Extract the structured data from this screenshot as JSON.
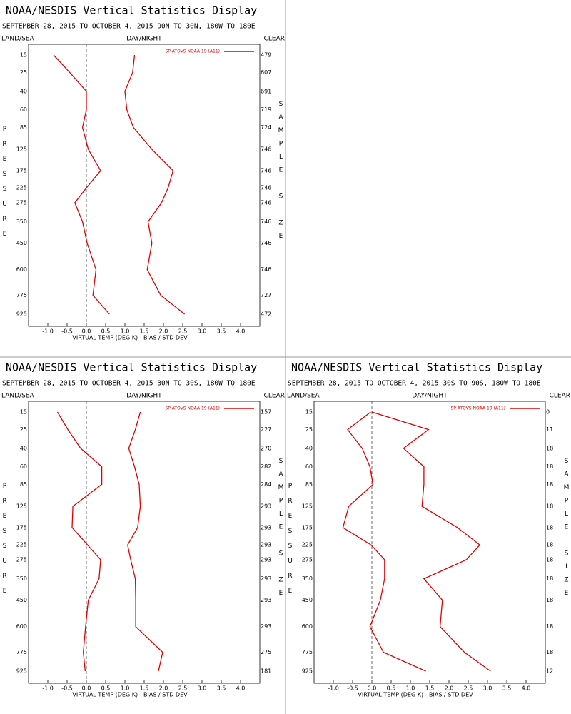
{
  "chart_data": [
    {
      "type": "line",
      "title": "NOAA/NESDIS Vertical Statistics Display",
      "subtitle": "SEPTEMBER 28, 2015 TO OCTOBER 4, 2015 90N TO 30N, 180W TO 180E",
      "left_header": "LAND/SEA",
      "center_header": "DAY/NIGHT",
      "right_header": "CLEAR",
      "ylabel": "PRESSURE",
      "y2label": "SAMPLE SIZE",
      "xlabel": "VIRTUAL TEMP (DEG K) - BIAS / STD DEV",
      "categories": [
        15,
        25,
        40,
        60,
        85,
        125,
        175,
        225,
        275,
        350,
        450,
        600,
        775,
        925
      ],
      "sample_sizes": [
        479,
        607,
        691,
        719,
        724,
        746,
        746,
        746,
        746,
        746,
        746,
        746,
        727,
        472
      ],
      "series": [
        {
          "name": "SP ATOVS NOAA-19 (A11)",
          "color": "#e00000",
          "bias": [
            -0.85,
            -0.43,
            0.0,
            0.0,
            -0.1,
            0.05,
            0.37,
            0.0,
            -0.3,
            -0.1,
            0.02,
            0.25,
            0.17,
            0.6
          ],
          "std_dev": [
            1.25,
            1.2,
            1.0,
            1.05,
            1.22,
            1.7,
            2.25,
            2.12,
            1.95,
            1.6,
            1.7,
            1.58,
            1.93,
            2.55
          ]
        }
      ],
      "xlim": [
        -1.5,
        4.5
      ],
      "xticks": [
        {
          "value": -1,
          "label": "-1.0"
        },
        {
          "value": -0.5,
          "label": "-0.5"
        },
        {
          "value": 0,
          "label": "0.0"
        },
        {
          "value": 0.5,
          "label": "0.5"
        },
        {
          "value": 1,
          "label": "1.0"
        },
        {
          "value": 1.5,
          "label": "1.5"
        },
        {
          "value": 2,
          "label": "2.0"
        },
        {
          "value": 2.5,
          "label": "2.5"
        },
        {
          "value": 3,
          "label": "3.0"
        },
        {
          "value": 3.5,
          "label": "3.5"
        },
        {
          "value": 4,
          "label": "4.0"
        }
      ]
    },
    {
      "type": "line",
      "title": "NOAA/NESDIS Vertical Statistics Display",
      "subtitle": "SEPTEMBER 28, 2015 TO OCTOBER 4, 2015 30N TO 30S, 180W TO 180E",
      "left_header": "LAND/SEA",
      "center_header": "DAY/NIGHT",
      "right_header": "CLEAR",
      "ylabel": "PRESSURE",
      "y2label": "SAMPLE SIZE",
      "xlabel": "VIRTUAL TEMP (DEG K) - BIAS / STD DEV",
      "categories": [
        15,
        25,
        40,
        60,
        85,
        125,
        175,
        225,
        275,
        350,
        450,
        600,
        775,
        925
      ],
      "sample_sizes": [
        157,
        227,
        270,
        282,
        284,
        293,
        293,
        293,
        293,
        293,
        293,
        293,
        275,
        181
      ],
      "series": [
        {
          "name": "SP ATOVS NOAA-19 (A11)",
          "color": "#e00000",
          "bias": [
            -0.75,
            -0.48,
            -0.15,
            0.4,
            0.4,
            -0.35,
            -0.37,
            0.03,
            0.37,
            0.33,
            0.05,
            -0.02,
            -0.08,
            -0.03
          ],
          "std_dev": [
            1.4,
            1.27,
            1.1,
            1.25,
            1.37,
            1.4,
            1.33,
            1.07,
            1.15,
            1.27,
            1.28,
            1.28,
            1.98,
            1.87
          ]
        }
      ],
      "xlim": [
        -1.5,
        4.5
      ],
      "xticks": [
        {
          "value": -1,
          "label": "-1.0"
        },
        {
          "value": -0.5,
          "label": "-0.5"
        },
        {
          "value": 0,
          "label": "0.0"
        },
        {
          "value": 0.5,
          "label": "0.5"
        },
        {
          "value": 1,
          "label": "1.0"
        },
        {
          "value": 1.5,
          "label": "1.5"
        },
        {
          "value": 2,
          "label": "2.0"
        },
        {
          "value": 2.5,
          "label": "2.5"
        },
        {
          "value": 3,
          "label": "3.0"
        },
        {
          "value": 3.5,
          "label": "3.5"
        },
        {
          "value": 4,
          "label": "4.0"
        }
      ]
    },
    {
      "type": "line",
      "title": "NOAA/NESDIS Vertical Statistics Display",
      "subtitle": "SEPTEMBER 28, 2015 TO OCTOBER 4, 2015 30S TO 90S, 180W TO 180E",
      "left_header": "LAND/SEA",
      "center_header": "DAY/NIGHT",
      "right_header": "CLEAR",
      "ylabel": "PRESSURE",
      "y2label": "SAMPLE SIZE",
      "xlabel": "VIRTUAL TEMP (DEG K) - BIAS / STD DEV",
      "categories": [
        15,
        25,
        40,
        60,
        85,
        125,
        175,
        225,
        275,
        350,
        450,
        600,
        775,
        925
      ],
      "sample_sizes": [
        0,
        11,
        18,
        18,
        18,
        18,
        18,
        18,
        18,
        18,
        18,
        18,
        18,
        12
      ],
      "series": [
        {
          "name": "SP ATOVS NOAA-19 (A11)",
          "color": "#e00000",
          "bias": [
            -0.03,
            -0.63,
            -0.25,
            -0.05,
            0.03,
            -0.6,
            -0.75,
            -0.02,
            0.33,
            0.33,
            0.22,
            -0.05,
            0.3,
            1.4
          ],
          "std_dev": [
            0.0,
            1.47,
            0.82,
            1.35,
            1.35,
            1.3,
            2.22,
            2.8,
            2.45,
            1.35,
            1.83,
            1.77,
            2.4,
            3.08
          ]
        }
      ],
      "xlim": [
        -1.5,
        4.5
      ],
      "xticks": [
        {
          "value": -1,
          "label": "-1.0"
        },
        {
          "value": -0.5,
          "label": "-0.5"
        },
        {
          "value": 0,
          "label": "0.0"
        },
        {
          "value": 0.5,
          "label": "0.5"
        },
        {
          "value": 1,
          "label": "1.0"
        },
        {
          "value": 1.5,
          "label": "1.5"
        },
        {
          "value": 2,
          "label": "2.0"
        },
        {
          "value": 2.5,
          "label": "2.5"
        },
        {
          "value": 3,
          "label": "3.0"
        },
        {
          "value": 3.5,
          "label": "3.5"
        },
        {
          "value": 4,
          "label": "4.0"
        }
      ]
    }
  ]
}
